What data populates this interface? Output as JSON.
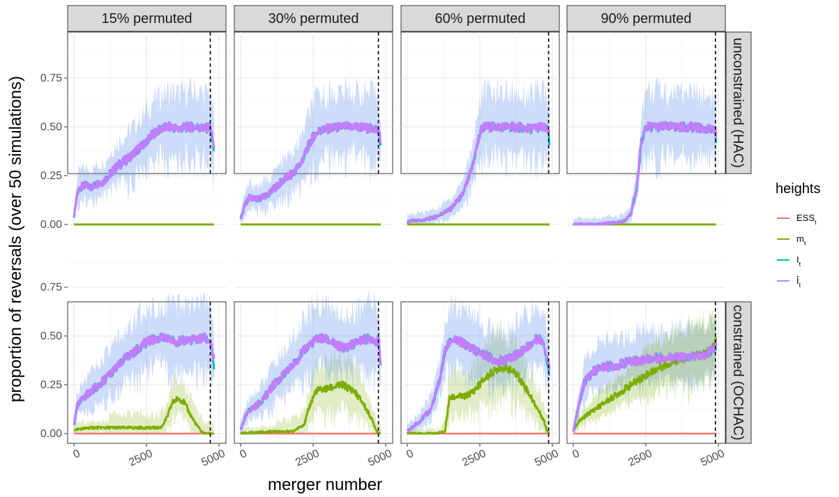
{
  "chart_data": {
    "type": "line",
    "xlabel": "merger number",
    "ylabel": "proportion of reversals (over 50 simulations)",
    "xlim": [
      0,
      5000
    ],
    "ylim": [
      0,
      1
    ],
    "x_ticks": [
      "0",
      "2500",
      "5000"
    ],
    "y_ticks": [
      "0.00",
      "0.25",
      "0.50",
      "0.75"
    ],
    "grid": true,
    "legend": {
      "title": "heights",
      "placement": "right",
      "entries": [
        {
          "label": "ESS",
          "sub": "t",
          "color": "#F8766D"
        },
        {
          "label": "m",
          "sub": "t",
          "color": "#7CAE00"
        },
        {
          "label": "I",
          "sub": "t",
          "color": "#00BFC4"
        },
        {
          "label": "Ī",
          "sub": "t",
          "color": "#C77CFF"
        }
      ]
    },
    "columns": [
      "15% permuted",
      "30% permuted",
      "60% permuted",
      "90% permuted"
    ],
    "rows": [
      "unconstrained (HAC)",
      "constrained (OCHAC)"
    ],
    "panels": [
      {
        "row": 0,
        "col": 0,
        "vline": 4700,
        "n": 4830,
        "Ibar": [
          [
            0,
            0.03
          ],
          [
            100,
            0.15
          ],
          [
            200,
            0.19
          ],
          [
            400,
            0.2
          ],
          [
            600,
            0.19
          ],
          [
            800,
            0.21
          ],
          [
            1000,
            0.22
          ],
          [
            1200,
            0.25
          ],
          [
            1500,
            0.3
          ],
          [
            1800,
            0.33
          ],
          [
            2100,
            0.37
          ],
          [
            2400,
            0.41
          ],
          [
            2700,
            0.46
          ],
          [
            3000,
            0.49
          ],
          [
            3300,
            0.5
          ],
          [
            3600,
            0.49
          ],
          [
            3900,
            0.5
          ],
          [
            4200,
            0.5
          ],
          [
            4500,
            0.49
          ],
          [
            4700,
            0.5
          ],
          [
            4830,
            0.4
          ]
        ],
        "m": [
          [
            0,
            0
          ],
          [
            4830,
            0
          ]
        ],
        "ess": null
      },
      {
        "row": 0,
        "col": 1,
        "vline": 4750,
        "n": 4830,
        "Ibar": [
          [
            0,
            0.03
          ],
          [
            150,
            0.1
          ],
          [
            300,
            0.14
          ],
          [
            600,
            0.13
          ],
          [
            900,
            0.15
          ],
          [
            1200,
            0.19
          ],
          [
            1500,
            0.23
          ],
          [
            1800,
            0.26
          ],
          [
            2100,
            0.32
          ],
          [
            2300,
            0.39
          ],
          [
            2500,
            0.45
          ],
          [
            2700,
            0.48
          ],
          [
            3000,
            0.49
          ],
          [
            3500,
            0.5
          ],
          [
            4000,
            0.5
          ],
          [
            4500,
            0.49
          ],
          [
            4750,
            0.49
          ],
          [
            4830,
            0.42
          ]
        ],
        "m": [
          [
            0,
            0
          ],
          [
            4830,
            0
          ]
        ],
        "ess": null
      },
      {
        "row": 0,
        "col": 2,
        "vline": 4870,
        "n": 4900,
        "Ibar": [
          [
            0,
            0.01
          ],
          [
            150,
            0.02
          ],
          [
            500,
            0.02
          ],
          [
            1000,
            0.04
          ],
          [
            1500,
            0.08
          ],
          [
            1900,
            0.15
          ],
          [
            2200,
            0.27
          ],
          [
            2400,
            0.4
          ],
          [
            2550,
            0.49
          ],
          [
            2700,
            0.5
          ],
          [
            3200,
            0.5
          ],
          [
            3700,
            0.5
          ],
          [
            4200,
            0.49
          ],
          [
            4600,
            0.5
          ],
          [
            4870,
            0.48
          ],
          [
            4900,
            0.45
          ]
        ],
        "m": [
          [
            0,
            0
          ],
          [
            4900,
            0
          ]
        ],
        "ess": null
      },
      {
        "row": 0,
        "col": 3,
        "vline": 4900,
        "n": 4920,
        "Ibar": [
          [
            0,
            0
          ],
          [
            800,
            0
          ],
          [
            1500,
            0.01
          ],
          [
            1800,
            0.02
          ],
          [
            2000,
            0.06
          ],
          [
            2200,
            0.2
          ],
          [
            2350,
            0.42
          ],
          [
            2500,
            0.5
          ],
          [
            3000,
            0.5
          ],
          [
            3500,
            0.5
          ],
          [
            4000,
            0.5
          ],
          [
            4500,
            0.49
          ],
          [
            4900,
            0.48
          ],
          [
            4920,
            0.45
          ]
        ],
        "m": [
          [
            0,
            0
          ],
          [
            4920,
            0
          ]
        ],
        "ess": null
      },
      {
        "row": 1,
        "col": 0,
        "vline": 4700,
        "n": 4830,
        "Ibar": [
          [
            0,
            0.04
          ],
          [
            100,
            0.14
          ],
          [
            300,
            0.18
          ],
          [
            600,
            0.22
          ],
          [
            900,
            0.25
          ],
          [
            1200,
            0.3
          ],
          [
            1500,
            0.34
          ],
          [
            1800,
            0.39
          ],
          [
            2100,
            0.42
          ],
          [
            2400,
            0.46
          ],
          [
            2700,
            0.48
          ],
          [
            3000,
            0.49
          ],
          [
            3300,
            0.48
          ],
          [
            3600,
            0.47
          ],
          [
            3900,
            0.48
          ],
          [
            4200,
            0.48
          ],
          [
            4500,
            0.49
          ],
          [
            4700,
            0.47
          ],
          [
            4830,
            0.37
          ]
        ],
        "m": [
          [
            0,
            0.02
          ],
          [
            600,
            0.03
          ],
          [
            1200,
            0.03
          ],
          [
            1800,
            0.03
          ],
          [
            2400,
            0.03
          ],
          [
            3000,
            0.03
          ],
          [
            3200,
            0.08
          ],
          [
            3400,
            0.16
          ],
          [
            3600,
            0.18
          ],
          [
            3800,
            0.16
          ],
          [
            4000,
            0.1
          ],
          [
            4200,
            0.05
          ],
          [
            4400,
            0.01
          ],
          [
            4500,
            0
          ],
          [
            4830,
            0
          ]
        ],
        "ess": [
          [
            0,
            0
          ],
          [
            4830,
            0
          ]
        ]
      },
      {
        "row": 1,
        "col": 1,
        "vline": 4750,
        "n": 4830,
        "Ibar": [
          [
            0,
            0.02
          ],
          [
            150,
            0.08
          ],
          [
            300,
            0.12
          ],
          [
            600,
            0.15
          ],
          [
            900,
            0.2
          ],
          [
            1200,
            0.26
          ],
          [
            1500,
            0.3
          ],
          [
            1800,
            0.35
          ],
          [
            2100,
            0.41
          ],
          [
            2400,
            0.46
          ],
          [
            2700,
            0.49
          ],
          [
            3000,
            0.48
          ],
          [
            3300,
            0.45
          ],
          [
            3600,
            0.44
          ],
          [
            3900,
            0.46
          ],
          [
            4200,
            0.48
          ],
          [
            4500,
            0.49
          ],
          [
            4750,
            0.47
          ],
          [
            4830,
            0.37
          ]
        ],
        "m": [
          [
            0,
            0
          ],
          [
            1000,
            0.01
          ],
          [
            1800,
            0.01
          ],
          [
            2200,
            0.05
          ],
          [
            2400,
            0.15
          ],
          [
            2600,
            0.22
          ],
          [
            3000,
            0.23
          ],
          [
            3500,
            0.25
          ],
          [
            3900,
            0.22
          ],
          [
            4200,
            0.16
          ],
          [
            4500,
            0.08
          ],
          [
            4700,
            0.01
          ],
          [
            4830,
            0
          ]
        ],
        "ess": [
          [
            0,
            0
          ],
          [
            4830,
            0
          ]
        ]
      },
      {
        "row": 1,
        "col": 2,
        "vline": 4870,
        "n": 4900,
        "Ibar": [
          [
            0,
            0.01
          ],
          [
            400,
            0.06
          ],
          [
            800,
            0.12
          ],
          [
            1100,
            0.26
          ],
          [
            1300,
            0.42
          ],
          [
            1500,
            0.48
          ],
          [
            1800,
            0.47
          ],
          [
            2100,
            0.45
          ],
          [
            2400,
            0.42
          ],
          [
            2700,
            0.4
          ],
          [
            3000,
            0.38
          ],
          [
            3300,
            0.37
          ],
          [
            3600,
            0.39
          ],
          [
            3900,
            0.42
          ],
          [
            4200,
            0.45
          ],
          [
            4500,
            0.49
          ],
          [
            4700,
            0.47
          ],
          [
            4900,
            0.33
          ]
        ],
        "m": [
          [
            0,
            0
          ],
          [
            1000,
            0
          ],
          [
            1300,
            0.01
          ],
          [
            1450,
            0.18
          ],
          [
            1700,
            0.19
          ],
          [
            2000,
            0.19
          ],
          [
            2300,
            0.22
          ],
          [
            2600,
            0.27
          ],
          [
            2900,
            0.31
          ],
          [
            3200,
            0.34
          ],
          [
            3500,
            0.33
          ],
          [
            3800,
            0.3
          ],
          [
            4100,
            0.23
          ],
          [
            4400,
            0.15
          ],
          [
            4700,
            0.07
          ],
          [
            4800,
            0.02
          ],
          [
            4900,
            0
          ]
        ],
        "ess": [
          [
            0,
            0
          ],
          [
            4900,
            0
          ]
        ]
      },
      {
        "row": 1,
        "col": 3,
        "vline": 4900,
        "n": 4920,
        "Ibar": [
          [
            0,
            0.01
          ],
          [
            200,
            0.15
          ],
          [
            400,
            0.27
          ],
          [
            700,
            0.32
          ],
          [
            1000,
            0.34
          ],
          [
            1500,
            0.35
          ],
          [
            2000,
            0.37
          ],
          [
            2500,
            0.38
          ],
          [
            3000,
            0.39
          ],
          [
            3500,
            0.39
          ],
          [
            4000,
            0.39
          ],
          [
            4500,
            0.4
          ],
          [
            4900,
            0.44
          ],
          [
            4920,
            0.46
          ]
        ],
        "m": [
          [
            0,
            0.02
          ],
          [
            200,
            0.06
          ],
          [
            500,
            0.1
          ],
          [
            1000,
            0.15
          ],
          [
            1500,
            0.2
          ],
          [
            2000,
            0.25
          ],
          [
            2500,
            0.3
          ],
          [
            3000,
            0.34
          ],
          [
            3500,
            0.37
          ],
          [
            4000,
            0.39
          ],
          [
            4500,
            0.41
          ],
          [
            4800,
            0.44
          ],
          [
            4920,
            0.48
          ]
        ],
        "ess": [
          [
            0,
            0
          ],
          [
            4920,
            0
          ]
        ]
      }
    ]
  }
}
